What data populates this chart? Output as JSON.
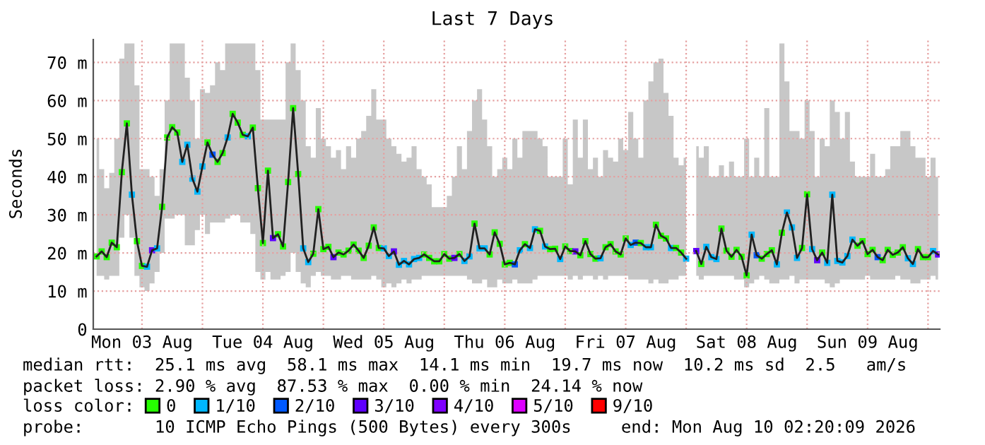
{
  "chart_data": {
    "type": "line",
    "title": "Last 7 Days",
    "ylabel": "Seconds",
    "xlim": [
      "2026-08-03T02:20",
      "2026-08-10T02:20"
    ],
    "xticks": [
      {
        "value": "2026-08-03T12:00",
        "label": "Mon 03 Aug"
      },
      {
        "value": "2026-08-04T00:00",
        "label": null
      },
      {
        "value": "2026-08-04T12:00",
        "label": "Tue 04 Aug"
      },
      {
        "value": "2026-08-05T00:00",
        "label": null
      },
      {
        "value": "2026-08-05T12:00",
        "label": "Wed 05 Aug"
      },
      {
        "value": "2026-08-06T00:00",
        "label": null
      },
      {
        "value": "2026-08-06T12:00",
        "label": "Thu 06 Aug"
      },
      {
        "value": "2026-08-07T00:00",
        "label": null
      },
      {
        "value": "2026-08-07T12:00",
        "label": "Fri 07 Aug"
      },
      {
        "value": "2026-08-08T00:00",
        "label": null
      },
      {
        "value": "2026-08-08T12:00",
        "label": "Sat 08 Aug"
      },
      {
        "value": "2026-08-09T00:00",
        "label": null
      },
      {
        "value": "2026-08-09T12:00",
        "label": "Sun 09 Aug"
      },
      {
        "value": "2026-08-10T00:00",
        "label": null
      }
    ],
    "ylim": [
      0,
      76
    ],
    "yticks": [
      0,
      {
        "value": 10,
        "label": "10 m"
      },
      {
        "value": 20,
        "label": "20 m"
      },
      {
        "value": 30,
        "label": "30 m"
      },
      {
        "value": 40,
        "label": "40 m"
      },
      {
        "value": 50,
        "label": "50 m"
      },
      {
        "value": 60,
        "label": "60 m"
      },
      {
        "value": 70,
        "label": "70 m"
      }
    ],
    "grid": true,
    "legend": "bottom",
    "legend_title": "loss color:",
    "marker": "square",
    "annotations": [
      "median rtt:  25.1 ms avg  58.1 ms max  14.1 ms min  19.7 ms now  10.2 ms sd  2.5   am/s",
      "packet loss: 2.90 % avg  87.53 % max  0.00 % min  24.14 % now",
      "probe:       10 ICMP Echo Pings (500 Bytes) every 300s",
      "end: Mon Aug 10 02:20:09 2026"
    ],
    "series": [
      {
        "color": "#202020",
        "x": [
          "2026-08-03T03:00",
          "2026-08-03T04:00",
          "2026-08-03T05:00",
          "2026-08-03T06:00",
          "2026-08-03T07:00",
          "2026-08-03T08:00",
          "2026-08-03T09:00",
          "2026-08-03T10:00",
          "2026-08-03T11:00",
          "2026-08-03T12:00",
          "2026-08-03T13:00",
          "2026-08-03T14:00",
          "2026-08-03T15:00",
          "2026-08-03T16:00",
          "2026-08-03T17:00",
          "2026-08-03T18:00",
          "2026-08-03T19:00",
          "2026-08-03T20:00",
          "2026-08-03T21:00",
          "2026-08-03T22:00",
          "2026-08-03T23:00",
          "2026-08-04T00:00",
          "2026-08-04T01:00",
          "2026-08-04T02:00",
          "2026-08-04T03:00",
          "2026-08-04T04:00",
          "2026-08-04T05:00",
          "2026-08-04T06:00",
          "2026-08-04T07:00",
          "2026-08-04T08:00",
          "2026-08-04T09:00",
          "2026-08-04T10:00",
          "2026-08-04T11:00",
          "2026-08-04T12:00",
          "2026-08-04T13:00",
          "2026-08-04T14:00",
          "2026-08-04T15:00",
          "2026-08-04T16:00",
          "2026-08-04T17:00",
          "2026-08-04T18:00",
          "2026-08-04T19:00",
          "2026-08-04T20:00",
          "2026-08-04T21:00",
          "2026-08-04T22:00",
          "2026-08-04T23:00",
          "2026-08-05T00:00",
          "2026-08-05T01:00",
          "2026-08-05T02:00",
          "2026-08-05T03:00",
          "2026-08-05T04:00",
          "2026-08-05T05:00",
          "2026-08-05T06:00",
          "2026-08-05T07:00",
          "2026-08-05T08:00",
          "2026-08-05T09:00",
          "2026-08-05T10:00",
          "2026-08-05T11:00",
          "2026-08-05T12:00",
          "2026-08-05T13:00",
          "2026-08-05T14:00",
          "2026-08-05T15:00",
          "2026-08-05T16:00",
          "2026-08-05T17:00",
          "2026-08-05T18:00",
          "2026-08-05T19:00",
          "2026-08-05T20:00",
          "2026-08-05T21:00",
          "2026-08-05T22:00",
          "2026-08-05T23:00",
          "2026-08-06T00:00",
          "2026-08-06T01:00",
          "2026-08-06T02:00",
          "2026-08-06T03:00",
          "2026-08-06T04:00",
          "2026-08-06T05:00",
          "2026-08-06T06:00",
          "2026-08-06T07:00",
          "2026-08-06T08:00",
          "2026-08-06T09:00",
          "2026-08-06T10:00",
          "2026-08-06T11:00",
          "2026-08-06T12:00",
          "2026-08-06T13:00",
          "2026-08-06T14:00",
          "2026-08-06T15:00",
          "2026-08-06T16:00",
          "2026-08-06T17:00",
          "2026-08-06T18:00",
          "2026-08-06T19:00",
          "2026-08-06T20:00",
          "2026-08-06T21:00",
          "2026-08-06T22:00",
          "2026-08-06T23:00",
          "2026-08-07T00:00",
          "2026-08-07T01:00",
          "2026-08-07T02:00",
          "2026-08-07T03:00",
          "2026-08-07T04:00",
          "2026-08-07T05:00",
          "2026-08-07T06:00",
          "2026-08-07T07:00",
          "2026-08-07T08:00",
          "2026-08-07T09:00",
          "2026-08-07T10:00",
          "2026-08-07T11:00",
          "2026-08-07T12:00",
          "2026-08-07T13:00",
          "2026-08-07T14:00",
          "2026-08-07T15:00",
          "2026-08-07T16:00",
          "2026-08-07T17:00",
          "2026-08-07T18:00",
          "2026-08-07T19:00",
          "2026-08-07T20:00",
          "2026-08-07T21:00",
          "2026-08-07T22:00",
          "2026-08-07T23:00",
          "2026-08-08T00:00",
          "2026-08-08T01:00",
          "2026-08-08T02:00",
          "2026-08-08T03:00",
          "2026-08-08T04:00",
          "2026-08-08T05:00",
          "2026-08-08T06:00",
          "2026-08-08T07:00",
          "2026-08-08T08:00",
          "2026-08-08T09:00",
          "2026-08-08T10:00",
          "2026-08-08T11:00",
          "2026-08-08T12:00",
          "2026-08-08T13:00",
          "2026-08-08T14:00",
          "2026-08-08T15:00",
          "2026-08-08T16:00",
          "2026-08-08T17:00",
          "2026-08-08T18:00",
          "2026-08-08T19:00",
          "2026-08-08T20:00",
          "2026-08-08T21:00",
          "2026-08-08T22:00",
          "2026-08-08T23:00",
          "2026-08-09T00:00",
          "2026-08-09T01:00",
          "2026-08-09T02:00",
          "2026-08-09T03:00",
          "2026-08-09T04:00",
          "2026-08-09T05:00",
          "2026-08-09T06:00",
          "2026-08-09T07:00",
          "2026-08-09T08:00",
          "2026-08-09T09:00",
          "2026-08-09T10:00",
          "2026-08-09T11:00",
          "2026-08-09T12:00",
          "2026-08-09T13:00",
          "2026-08-09T14:00",
          "2026-08-09T15:00",
          "2026-08-09T16:00",
          "2026-08-09T17:00",
          "2026-08-09T18:00",
          "2026-08-09T19:00",
          "2026-08-09T20:00",
          "2026-08-09T21:00",
          "2026-08-09T22:00",
          "2026-08-09T23:00",
          "2026-08-10T00:00",
          "2026-08-10T01:00",
          "2026-08-10T02:00"
        ],
        "values": [
          19.1,
          20.4,
          18.9,
          22.7,
          21.5,
          41.2,
          54,
          35.3,
          23.1,
          16.6,
          16.4,
          20.7,
          21.2,
          32.1,
          50.3,
          53,
          51.6,
          43.9,
          48.4,
          39.5,
          36.1,
          42.7,
          49,
          45.8,
          43.9,
          46.2,
          50.3,
          56.5,
          54.2,
          51,
          50.6,
          52.9,
          37,
          22.6,
          41.6,
          23.9,
          24.9,
          21.7,
          38.6,
          58,
          40.7,
          21.2,
          17.6,
          19.8,
          31.5,
          21,
          21.6,
          18.9,
          20.1,
          19.6,
          20.6,
          22.2,
          20.6,
          18.7,
          21.9,
          26.7,
          21.3,
          21.2,
          19.2,
          20.4,
          16.9,
          17.9,
          17,
          18.4,
          18.7,
          19.6,
          18.7,
          17.8,
          17.8,
          19.7,
          18.5,
          18.7,
          19.7,
          17.9,
          19.1,
          27.7,
          21.2,
          21.2,
          19.6,
          25.4,
          22.4,
          17,
          17.4,
          17,
          20.7,
          22.3,
          21.3,
          26.2,
          25.8,
          21.7,
          21,
          21.1,
          18.4,
          21.7,
          20.5,
          20.4,
          19.4,
          23.1,
          19.7,
          18.5,
          18.6,
          21.5,
          22.3,
          20.4,
          19.6,
          23.8,
          22.1,
          22.7,
          22.6,
          21.5,
          21.5,
          27.4,
          24.5,
          23.8,
          21.3,
          21.3,
          20.1,
          18.5,
          null,
          20.5,
          17.1,
          21.6,
          18.9,
          18.4,
          26.4,
          20.6,
          19,
          20.8,
          19,
          14.1,
          24.8,
          19.4,
          18.5,
          19.7,
          20.7,
          17,
          25.3,
          30.6,
          26.7,
          18.7,
          21.3,
          35.4,
          21,
          18.1,
          20.1,
          17.4,
          35.3,
          17.9,
          17.5,
          19.2,
          23.5,
          21.9,
          23.1,
          19.7,
          20.8,
          18.9,
          18.1,
          20.8,
          19.5,
          20.1,
          21.5,
          18.6,
          17.1,
          21,
          18.9,
          18.9,
          20.5,
          19.6
        ],
        "colors": [
          "#26ff00",
          "#26ff00",
          "#26ff00",
          "#26ff00",
          "#26ff00",
          "#26ff00",
          "#26ff00",
          "#00b8ff",
          "#26ff00",
          "#26ff00",
          "#00b8ff",
          "#5e00ff",
          "#00b8ff",
          "#26ff00",
          "#26ff00",
          "#26ff00",
          "#26ff00",
          "#00b8ff",
          "#00b8ff",
          "#00b8ff",
          "#00b8ff",
          "#00b8ff",
          "#26ff00",
          "#0059ff",
          "#26ff00",
          "#26ff00",
          "#00b8ff",
          "#26ff00",
          "#26ff00",
          "#26ff00",
          "#00b8ff",
          "#26ff00",
          "#26ff00",
          "#26ff00",
          "#26ff00",
          "#5e00ff",
          "#26ff00",
          "#26ff00",
          "#26ff00",
          "#26ff00",
          "#26ff00",
          "#00b8ff",
          "#00b8ff",
          "#26ff00",
          "#26ff00",
          "#26ff00",
          "#26ff00",
          "#5e00ff",
          "#26ff00",
          "#26ff00",
          "#26ff00",
          "#26ff00",
          "#26ff00",
          "#26ff00",
          "#26ff00",
          "#26ff00",
          "#26ff00",
          "#00b8ff",
          "#00b8ff",
          "#5e00ff",
          "#00b8ff",
          "#00b8ff",
          "#00b8ff",
          "#00b8ff",
          "#00b8ff",
          "#26ff00",
          "#26ff00",
          "#26ff00",
          "#26ff00",
          "#26ff00",
          "#26ff00",
          "#5e00ff",
          "#26ff00",
          "#00b8ff",
          "#00b8ff",
          "#26ff00",
          "#00b8ff",
          "#00b8ff",
          "#26ff00",
          "#26ff00",
          "#26ff00",
          "#26ff00",
          "#26ff00",
          "#0059ff",
          "#00b8ff",
          "#26ff00",
          "#00b8ff",
          "#00b8ff",
          "#26ff00",
          "#00b8ff",
          "#26ff00",
          "#26ff00",
          "#00b8ff",
          "#26ff00",
          "#26ff00",
          "#5e00ff",
          "#26ff00",
          "#26ff00",
          "#26ff00",
          "#26ff00",
          "#00b8ff",
          "#26ff00",
          "#26ff00",
          "#26ff00",
          "#26ff00",
          "#26ff00",
          "#00b8ff",
          "#0059ff",
          "#26ff00",
          "#00b8ff",
          "#00b8ff",
          "#26ff00",
          "#26ff00",
          "#26ff00",
          "#00b8ff",
          "#26ff00",
          "#26ff00",
          "#00b8ff",
          null,
          "#5e00ff",
          "#26ff00",
          "#00b8ff",
          "#00b8ff",
          "#00b8ff",
          "#26ff00",
          "#26ff00",
          "#26ff00",
          "#26ff00",
          "#26ff00",
          "#26ff00",
          "#00b8ff",
          "#0059ff",
          "#26ff00",
          "#26ff00",
          "#26ff00",
          "#00b8ff",
          "#26ff00",
          "#00b8ff",
          "#00b8ff",
          "#00b8ff",
          "#26ff00",
          "#26ff00",
          "#00b8ff",
          "#5e00ff",
          "#26ff00",
          "#00b8ff",
          "#00b8ff",
          "#00b8ff",
          "#00b8ff",
          "#00b8ff",
          "#00b8ff",
          "#26ff00",
          "#26ff00",
          "#26ff00",
          "#26ff00",
          "#0059ff",
          "#26ff00",
          "#26ff00",
          "#26ff00",
          "#26ff00",
          "#26ff00",
          "#00b8ff",
          "#00b8ff",
          "#26ff00",
          "#26ff00",
          "#26ff00",
          "#00b8ff",
          "#5e00ff"
        ],
        "upper": [
          50,
          42,
          37,
          41,
          50,
          71,
          75,
          75,
          64,
          42,
          42,
          40,
          35,
          42,
          60,
          75,
          75,
          75,
          66,
          60,
          50,
          63,
          62,
          64,
          70,
          68,
          75,
          75,
          75,
          75,
          75,
          75,
          68,
          55,
          55,
          55,
          55,
          55,
          70,
          75,
          68,
          60,
          48,
          45,
          58,
          50,
          48,
          45,
          47,
          42,
          48,
          45,
          50,
          52,
          56,
          63,
          55,
          55,
          50,
          48,
          46,
          44,
          45,
          48,
          42,
          40,
          38,
          32,
          32,
          32,
          35,
          40,
          48,
          42,
          52,
          60,
          63,
          55,
          48,
          40,
          42,
          45,
          42,
          50,
          45,
          52,
          52,
          52,
          50,
          48,
          40,
          40,
          40,
          50,
          38,
          55,
          45,
          55,
          42,
          45,
          40,
          47,
          45,
          44,
          50,
          47,
          57,
          50,
          45,
          60,
          65,
          70,
          71,
          62,
          56,
          45,
          43,
          45,
          null,
          48,
          45,
          48,
          40,
          40,
          43,
          40,
          44,
          40,
          40,
          50,
          40,
          45,
          40,
          58,
          40,
          40,
          75,
          65,
          52,
          52,
          50,
          60,
          52,
          40,
          50,
          48,
          60,
          57,
          50,
          57,
          44,
          40,
          40,
          40,
          46,
          40,
          40,
          42,
          48,
          48,
          52,
          52,
          48,
          45,
          45,
          40,
          45,
          40
        ],
        "lower": [
          14,
          14,
          13,
          14,
          14,
          24,
          30,
          24,
          14,
          11,
          10,
          12,
          15,
          20,
          29,
          29,
          30,
          30,
          22,
          22,
          26,
          30,
          25,
          28,
          28,
          28,
          29,
          30,
          30,
          28,
          28,
          25,
          15,
          13,
          15,
          13,
          13,
          14,
          15,
          20,
          15,
          12,
          11,
          14,
          15,
          14,
          14,
          13,
          13,
          14,
          14,
          13,
          13,
          13,
          13,
          14,
          13,
          11,
          12,
          11,
          12,
          13,
          12,
          13,
          13,
          14,
          14,
          14,
          14,
          14,
          14,
          14,
          14,
          14,
          13,
          12,
          12,
          13,
          11,
          11,
          13,
          12,
          12,
          13,
          12,
          12,
          12,
          13,
          14,
          14,
          14,
          14,
          14,
          14,
          13,
          14,
          13,
          14,
          14,
          13,
          14,
          13,
          14,
          14,
          14,
          14,
          13,
          13,
          13,
          13,
          12,
          13,
          12,
          12,
          13,
          13,
          14,
          14,
          null,
          14,
          13,
          14,
          14,
          14,
          14,
          14,
          14,
          13,
          13,
          11,
          12,
          13,
          14,
          13,
          12,
          12,
          13,
          13,
          14,
          12,
          13,
          13,
          13,
          13,
          13,
          12,
          11,
          12,
          13,
          13,
          13,
          13,
          13,
          14,
          13,
          13,
          13,
          13,
          13,
          14,
          13,
          13,
          12,
          12,
          13,
          13,
          14,
          13
        ]
      },
      {
        "name": "0",
        "color": "#26ff00"
      },
      {
        "name": "1/10",
        "color": "#00b8ff"
      },
      {
        "name": "2/10",
        "color": "#0059ff"
      },
      {
        "name": "3/10",
        "color": "#5e00ff"
      },
      {
        "name": "4/10",
        "color": "#7e00ff"
      },
      {
        "name": "5/10",
        "color": "#dd00ff"
      },
      {
        "name": "9/10",
        "color": "#ff0000"
      }
    ]
  }
}
